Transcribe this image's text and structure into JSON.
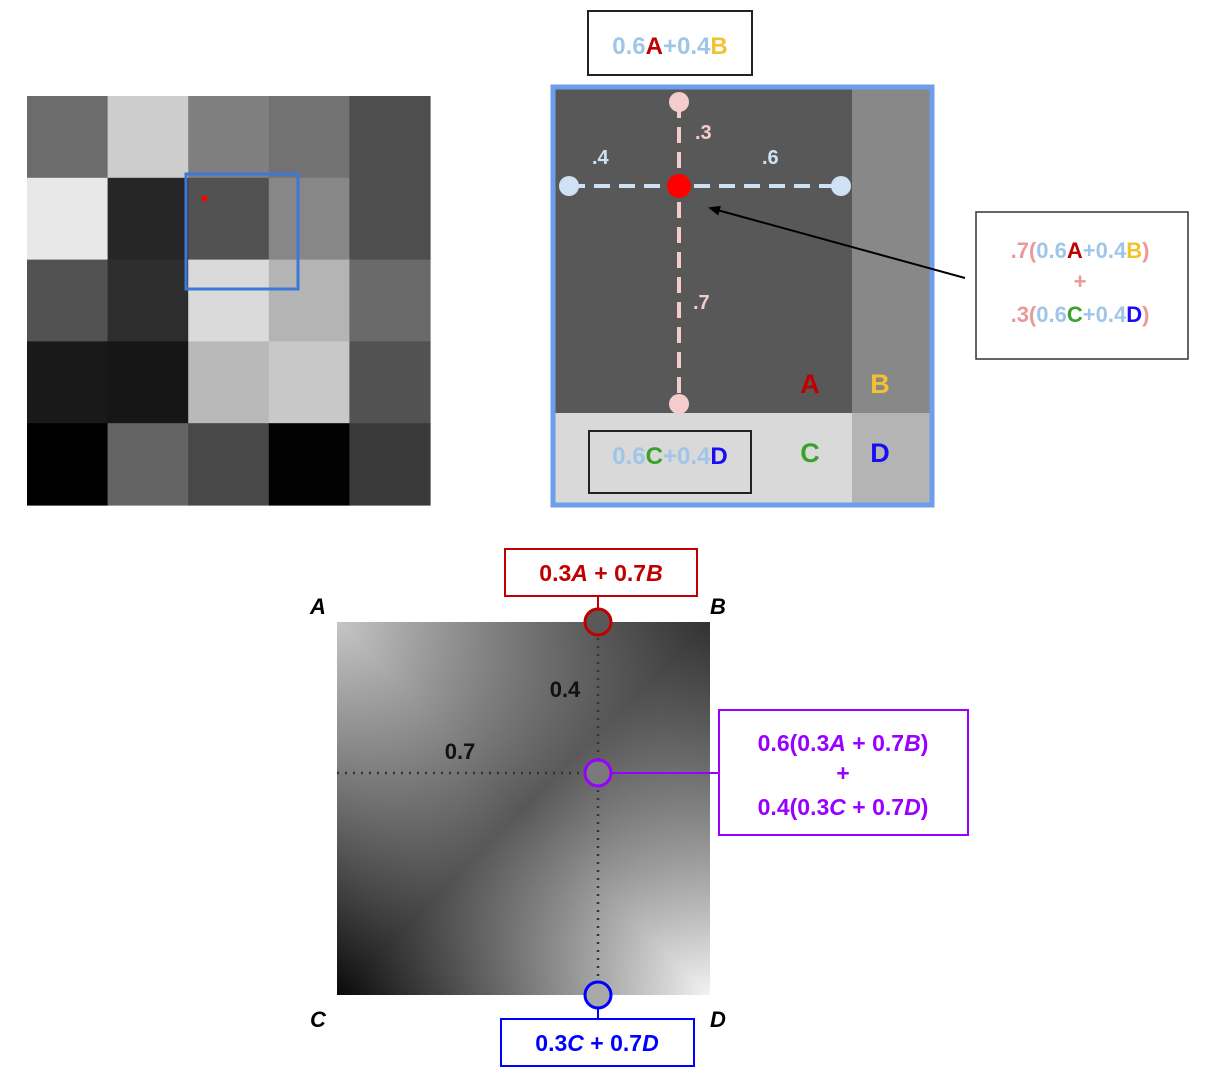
{
  "pixel_grid": {
    "gray_levels": [
      [
        108,
        205,
        127,
        114,
        78
      ],
      [
        232,
        38,
        82,
        135,
        78
      ],
      [
        82,
        45,
        218,
        180,
        105
      ],
      [
        25,
        22,
        185,
        200,
        82
      ],
      [
        0,
        100,
        72,
        2,
        58
      ]
    ]
  },
  "zoom": {
    "colors": {
      "A": "#c00000",
      "B": "#f1c232",
      "C": "#38a329",
      "D": "#1a0df0",
      "coef": "#9fc5e8",
      "vcoef": "#ea9999"
    },
    "top_box": {
      "c1": "0.6",
      "l1": "A",
      "op": "+",
      "c2": "0.4",
      "l2": "B"
    },
    "bottom_box": {
      "c1": "0.6",
      "l1": "C",
      "op": "+",
      "c2": "0.4",
      "l2": "D"
    },
    "labels": {
      "left_frac": ".4",
      "right_frac": ".6",
      "top_frac": ".3",
      "bottom_frac": ".7"
    },
    "corners": {
      "A": "A",
      "B": "B",
      "C": "C",
      "D": "D"
    },
    "formula": {
      "line1": {
        "w": ".7(",
        "c1": "0.6",
        "l1": "A",
        "op": "+",
        "c2": "0.4",
        "l2": "B",
        "close": ")"
      },
      "plus": "+",
      "line2": {
        "w": ".3(",
        "c1": "0.6",
        "l1": "C",
        "op": "+",
        "c2": "0.4",
        "l2": "D",
        "close": ")"
      }
    }
  },
  "gradient": {
    "corners": {
      "A": "A",
      "B": "B",
      "C": "C",
      "D": "D"
    },
    "top_label": {
      "a": "0.3",
      "A": "A",
      "mid": " + 0.7",
      "B": "B"
    },
    "bottom_label": {
      "a": "0.3",
      "C": "C",
      "mid": " + 0.7",
      "D": "D"
    },
    "middle_label": {
      "line1": {
        "a": "0.6(0.3",
        "A": "A",
        "mid": " + 0.7",
        "B": "B",
        "close": ")"
      },
      "plus": "+",
      "line2": {
        "a": "0.4(0.3",
        "C": "C",
        "mid": " + 0.7",
        "D": "D",
        "close": ")"
      }
    },
    "frac_vertical": "0.4",
    "frac_horizontal": "0.7",
    "colors": {
      "top": "#c00000",
      "middle": "#9900ff",
      "bottom": "#0000ff"
    }
  }
}
